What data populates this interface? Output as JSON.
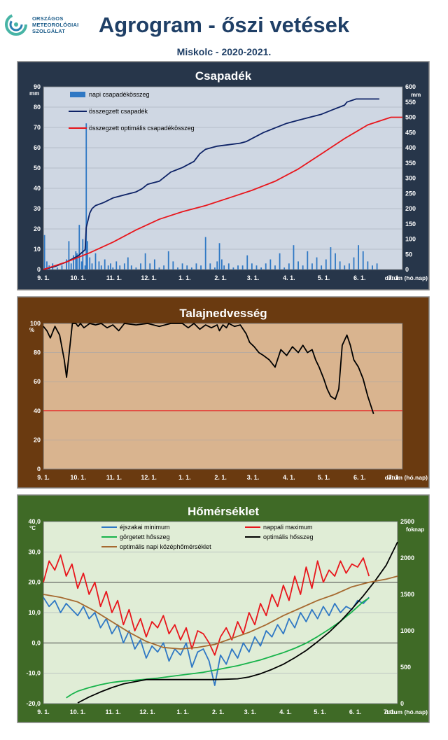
{
  "header": {
    "logo_lines": [
      "ORSZÁGOS",
      "METEOROLÓGIAI",
      "SZOLGÁLAT"
    ],
    "title": "Agrogram - őszi vetések",
    "subtitle": "Miskolc - 2020-2021."
  },
  "colors": {
    "precip_panel": "#27364a",
    "precip_plot": "#cfd7e3",
    "soil_panel": "#6a3a10",
    "soil_plot": "#d9b48f",
    "temp_panel": "#3f6a26",
    "temp_plot": "#e0edd6",
    "bar_blue": "#2f78c4",
    "navy": "#0d2266",
    "red": "#e8161c",
    "green": "#17b34a",
    "brown": "#a66a30",
    "black": "#000000"
  },
  "x_axis": {
    "ticks": [
      "9. 1.",
      "10. 1.",
      "11. 1.",
      "12. 1.",
      "1. 1.",
      "2. 1.",
      "3. 1.",
      "4. 1.",
      "5. 1.",
      "6. 1.",
      "7. 1."
    ],
    "label": "dátum (hó.nap)"
  },
  "chart_data": [
    {
      "type": "bar",
      "title": "Csapadék",
      "ylabel": "mm",
      "y2label": "mm",
      "ylim": [
        0,
        90
      ],
      "y2lim": [
        0,
        600
      ],
      "yticks": [
        0,
        10,
        20,
        30,
        40,
        50,
        60,
        70,
        80,
        90
      ],
      "y2ticks": [
        0,
        50,
        100,
        150,
        200,
        250,
        300,
        350,
        400,
        450,
        500,
        550,
        600
      ],
      "legend": [
        "napi csapadékösszeg",
        "összegzett csapadék",
        "összegzett optimális csapadékösszeg"
      ],
      "legend_position": "top-left",
      "series": [
        {
          "name": "napi csapadékösszeg",
          "kind": "bar",
          "x": [
            1,
            3,
            5,
            8,
            12,
            16,
            20,
            22,
            24,
            26,
            28,
            29,
            31,
            33,
            34,
            36,
            37,
            38,
            40,
            42,
            45,
            48,
            50,
            53,
            56,
            58,
            60,
            63,
            66,
            70,
            73,
            76,
            80,
            84,
            88,
            92,
            96,
            100,
            104,
            108,
            112,
            116,
            120,
            124,
            128,
            132,
            136,
            140,
            144,
            148,
            150,
            152,
            154,
            156,
            160,
            164,
            168,
            172,
            176,
            180,
            184,
            188,
            192,
            196,
            200,
            204,
            208,
            212,
            216,
            220,
            224,
            228,
            232,
            236,
            240,
            244,
            248,
            252,
            256,
            260,
            264,
            268,
            272,
            276,
            280,
            284,
            288
          ],
          "values": [
            17,
            4,
            2,
            3,
            1,
            2,
            5,
            14,
            3,
            7,
            9,
            8,
            22,
            4,
            15,
            2,
            72,
            14,
            6,
            3,
            8,
            4,
            2,
            5,
            2,
            3,
            1,
            4,
            2,
            3,
            6,
            2,
            1,
            3,
            8,
            3,
            5,
            1,
            2,
            9,
            4,
            1,
            3,
            2,
            1,
            3,
            2,
            16,
            3,
            1,
            4,
            13,
            5,
            2,
            3,
            1,
            2,
            2,
            7,
            3,
            2,
            1,
            3,
            5,
            2,
            8,
            1,
            3,
            12,
            4,
            2,
            9,
            3,
            6,
            2,
            5,
            11,
            8,
            4,
            2,
            3,
            6,
            12,
            9,
            4,
            2,
            3
          ]
        },
        {
          "name": "összegzett csapadék",
          "kind": "line",
          "axis": "right",
          "x": [
            0,
            10,
            20,
            30,
            36,
            37,
            40,
            42,
            45,
            52,
            60,
            70,
            80,
            85,
            90,
            95,
            100,
            110,
            120,
            130,
            135,
            140,
            145,
            150,
            160,
            170,
            175,
            180,
            190,
            200,
            210,
            220,
            230,
            240,
            250,
            260,
            262,
            270,
            280,
            290
          ],
          "values": [
            0,
            10,
            25,
            45,
            65,
            138,
            185,
            200,
            210,
            220,
            235,
            245,
            255,
            265,
            280,
            285,
            290,
            320,
            335,
            355,
            380,
            395,
            400,
            405,
            410,
            415,
            420,
            430,
            450,
            465,
            480,
            490,
            500,
            510,
            525,
            540,
            550,
            560,
            560,
            560
          ]
        },
        {
          "name": "összegzett optimális csapadékösszeg",
          "kind": "line",
          "axis": "right",
          "x": [
            0,
            20,
            40,
            60,
            80,
            100,
            120,
            140,
            160,
            180,
            200,
            220,
            240,
            260,
            280,
            300,
            310
          ],
          "values": [
            0,
            25,
            55,
            90,
            130,
            165,
            190,
            210,
            235,
            260,
            290,
            330,
            380,
            430,
            475,
            500,
            500
          ]
        }
      ]
    },
    {
      "type": "line",
      "title": "Talajnedvesség",
      "ylabel": "%",
      "ylim": [
        0,
        100
      ],
      "yticks": [
        0,
        20,
        40,
        60,
        80,
        100
      ],
      "series": [
        {
          "name": "",
          "x": [
            0,
            3,
            6,
            10,
            14,
            18,
            20,
            25,
            28,
            30,
            32,
            35,
            40,
            45,
            50,
            55,
            60,
            65,
            70,
            80,
            90,
            100,
            110,
            120,
            125,
            130,
            135,
            140,
            145,
            150,
            152,
            155,
            158,
            160,
            165,
            170,
            175,
            178,
            182,
            186,
            190,
            195,
            200,
            205,
            210,
            215,
            220,
            224,
            228,
            232,
            235,
            238,
            242,
            245,
            248,
            252,
            255,
            258,
            262,
            265,
            268,
            272,
            276,
            280,
            285
          ],
          "values": [
            98,
            95,
            90,
            98,
            92,
            75,
            63,
            100,
            100,
            98,
            100,
            97,
            100,
            99,
            100,
            97,
            99,
            95,
            100,
            99,
            100,
            98,
            100,
            100,
            97,
            100,
            96,
            99,
            97,
            99,
            95,
            99,
            97,
            100,
            98,
            99,
            93,
            87,
            84,
            80,
            78,
            75,
            70,
            82,
            78,
            84,
            80,
            85,
            80,
            82,
            75,
            70,
            62,
            55,
            50,
            48,
            55,
            85,
            92,
            85,
            75,
            70,
            62,
            50,
            38
          ]
        }
      ],
      "reference_line": 40
    },
    {
      "type": "line",
      "title": "Hőmérséklet",
      "ylabel": "°C",
      "y2label": "foknap",
      "ylim": [
        -20,
        40
      ],
      "y2lim": [
        0,
        2500
      ],
      "yticks": [
        -20,
        -10,
        0,
        10,
        20,
        30,
        40
      ],
      "ytick_labels": [
        "-20,0",
        "-10,0",
        "0,0",
        "10,0",
        "20,0",
        "30,0",
        "40,0"
      ],
      "y2ticks": [
        0,
        500,
        1000,
        1500,
        2000,
        2500
      ],
      "legend": [
        "éjszakai minimum",
        "nappali maximum",
        "görgetett hősszeg",
        "optimális hősszeg",
        "optimális napi középhőmérséklet"
      ],
      "legend_position": "top",
      "series": [
        {
          "name": "éjszakai minimum",
          "x": [
            0,
            5,
            10,
            15,
            20,
            25,
            30,
            35,
            40,
            45,
            50,
            55,
            60,
            65,
            70,
            75,
            80,
            85,
            90,
            95,
            100,
            105,
            110,
            115,
            120,
            125,
            130,
            135,
            140,
            145,
            150,
            155,
            160,
            165,
            170,
            175,
            180,
            185,
            190,
            195,
            200,
            205,
            210,
            215,
            220,
            225,
            230,
            235,
            240,
            245,
            250,
            255,
            260,
            265,
            270,
            275,
            280,
            285
          ],
          "values": [
            15,
            12,
            14,
            10,
            13,
            11,
            9,
            12,
            8,
            10,
            5,
            8,
            3,
            6,
            0,
            4,
            -2,
            1,
            -5,
            -1,
            -3,
            0,
            -6,
            -2,
            -4,
            0,
            -8,
            -3,
            -2,
            -6,
            -14,
            -4,
            -7,
            -2,
            -5,
            0,
            -3,
            2,
            -1,
            4,
            2,
            6,
            3,
            8,
            5,
            10,
            7,
            11,
            8,
            12,
            9,
            13,
            10,
            12,
            11,
            14,
            13,
            15
          ]
        },
        {
          "name": "nappali maximum",
          "x": [
            0,
            5,
            10,
            15,
            20,
            25,
            30,
            35,
            40,
            45,
            50,
            55,
            60,
            65,
            70,
            75,
            80,
            85,
            90,
            95,
            100,
            105,
            110,
            115,
            120,
            125,
            130,
            135,
            140,
            145,
            150,
            155,
            160,
            165,
            170,
            175,
            180,
            185,
            190,
            195,
            200,
            205,
            210,
            215,
            220,
            225,
            230,
            235,
            240,
            245,
            250,
            255,
            260,
            265,
            270,
            275,
            280,
            285
          ],
          "values": [
            20,
            27,
            24,
            29,
            22,
            26,
            18,
            23,
            16,
            20,
            12,
            17,
            10,
            14,
            6,
            11,
            4,
            8,
            2,
            7,
            5,
            9,
            3,
            6,
            1,
            5,
            -2,
            4,
            3,
            0,
            -4,
            2,
            5,
            1,
            7,
            3,
            10,
            6,
            13,
            9,
            16,
            12,
            19,
            14,
            22,
            16,
            25,
            18,
            27,
            20,
            24,
            22,
            27,
            23,
            26,
            25,
            28,
            22
          ]
        },
        {
          "name": "görgetett hősszeg",
          "axis": "right",
          "x": [
            20,
            25,
            30,
            40,
            50,
            60,
            70,
            80,
            90,
            100,
            110,
            120,
            130,
            140,
            150,
            160,
            170,
            180,
            190,
            200,
            210,
            220,
            230,
            240,
            250,
            260,
            270,
            280,
            285
          ],
          "values": [
            80,
            130,
            170,
            220,
            260,
            290,
            310,
            320,
            335,
            350,
            370,
            390,
            410,
            430,
            460,
            490,
            520,
            560,
            600,
            650,
            700,
            760,
            830,
            920,
            1020,
            1130,
            1260,
            1400,
            1450
          ]
        },
        {
          "name": "optimális hősszeg",
          "axis": "right",
          "x": [
            30,
            40,
            50,
            60,
            70,
            80,
            90,
            100,
            110,
            120,
            130,
            140,
            150,
            160,
            170,
            180,
            190,
            200,
            210,
            220,
            230,
            240,
            250,
            260,
            270,
            280,
            290,
            300,
            310
          ],
          "values": [
            10,
            90,
            160,
            220,
            270,
            300,
            330,
            330,
            330,
            330,
            330,
            330,
            330,
            335,
            340,
            365,
            410,
            470,
            540,
            630,
            730,
            850,
            980,
            1130,
            1300,
            1480,
            1680,
            1900,
            2220
          ]
        },
        {
          "name": "optimális napi középhőmérséklet",
          "x": [
            0,
            15,
            30,
            45,
            60,
            75,
            90,
            105,
            120,
            135,
            150,
            165,
            180,
            195,
            210,
            225,
            240,
            255,
            270,
            285,
            300,
            310
          ],
          "values": [
            16,
            15,
            13.5,
            10.5,
            7,
            3.5,
            0.5,
            -1.5,
            -2,
            -1.5,
            -0.5,
            1.5,
            3.5,
            6,
            9,
            11.5,
            14,
            16,
            18.5,
            20,
            21,
            22
          ]
        }
      ],
      "reference_lines": [
        0,
        20
      ]
    }
  ]
}
